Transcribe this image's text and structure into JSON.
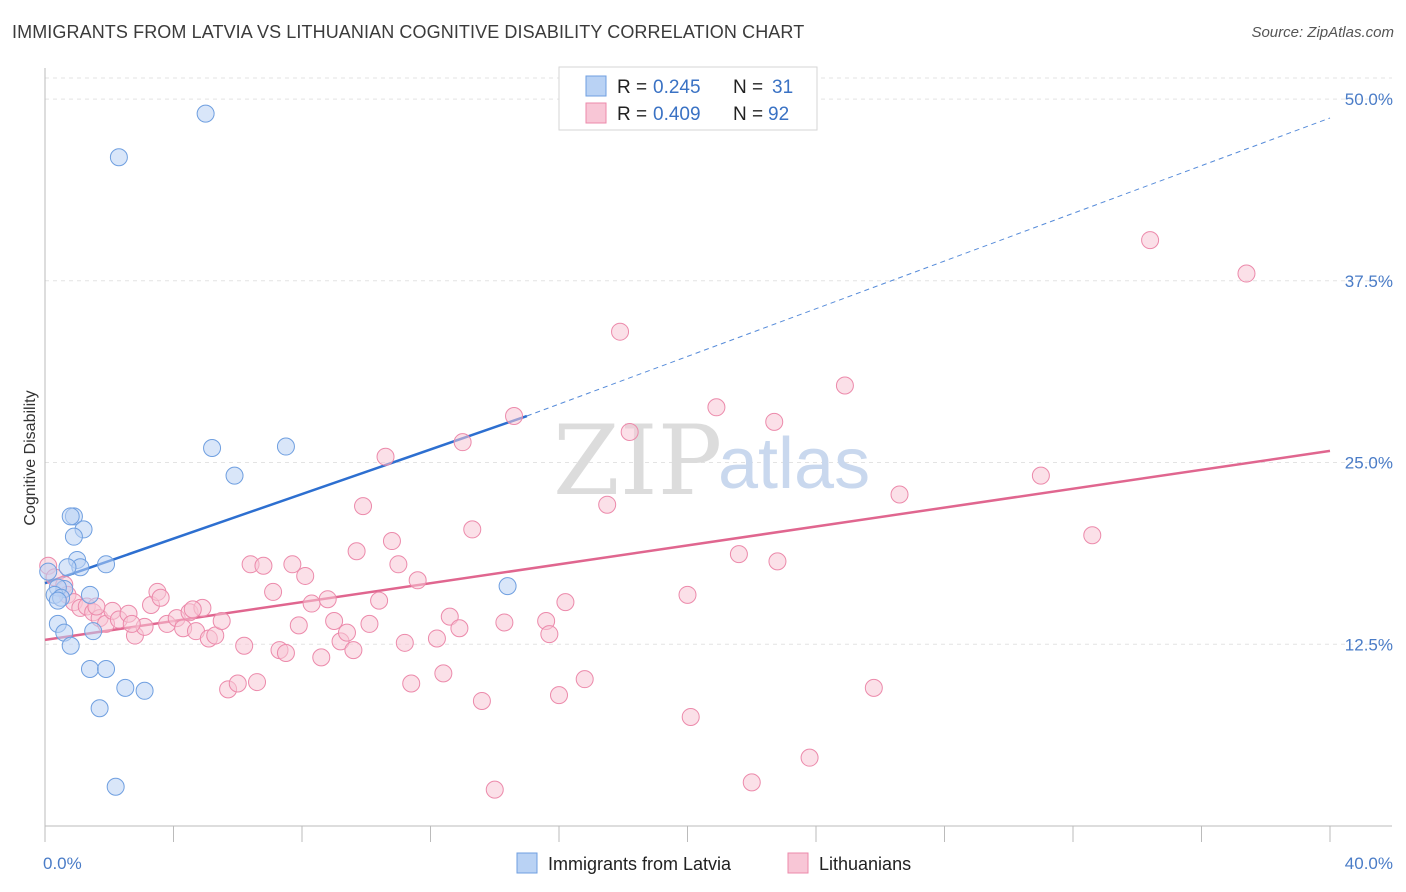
{
  "title": "IMMIGRANTS FROM LATVIA VS LITHUANIAN COGNITIVE DISABILITY CORRELATION CHART",
  "source": "Source: ZipAtlas.com",
  "watermark": {
    "zip": "ZIP",
    "atlas": "atlas"
  },
  "legend": {
    "r_label": "R =",
    "n_label": "N =",
    "rows": [
      {
        "r": "0.245",
        "n": "31"
      },
      {
        "r": "0.409",
        "n": "92"
      }
    ]
  },
  "chart_data": {
    "type": "scatter",
    "ylabel": "Cognitive Disability",
    "xlim": [
      0,
      40
    ],
    "ylim": [
      0,
      52
    ],
    "x_tick_labels": [
      "0.0%",
      "40.0%"
    ],
    "y_ticks": [
      12.5,
      25.0,
      37.5,
      50.0
    ],
    "y_tick_labels": [
      "12.5%",
      "25.0%",
      "37.5%",
      "50.0%"
    ],
    "grid": true,
    "legend_position": "top-center",
    "series": [
      {
        "name": "Immigrants from Latvia",
        "color": "#6f9fe0",
        "fill": "#b9d2f4",
        "trend": {
          "x": [
            0,
            15
          ],
          "y": [
            16.7,
            28.2
          ],
          "extend_to": [
            40,
            48.7
          ],
          "color": "#2d6fd0"
        },
        "points": [
          [
            5.0,
            49.0
          ],
          [
            2.3,
            46.0
          ],
          [
            5.2,
            26.0
          ],
          [
            7.5,
            26.1
          ],
          [
            5.9,
            24.1
          ],
          [
            0.9,
            21.3
          ],
          [
            0.8,
            21.3
          ],
          [
            1.2,
            20.4
          ],
          [
            0.9,
            19.9
          ],
          [
            1.9,
            18.0
          ],
          [
            1.0,
            18.3
          ],
          [
            1.1,
            17.8
          ],
          [
            0.7,
            17.8
          ],
          [
            0.1,
            17.5
          ],
          [
            0.6,
            16.3
          ],
          [
            0.4,
            16.4
          ],
          [
            0.3,
            15.9
          ],
          [
            0.5,
            15.7
          ],
          [
            0.4,
            15.5
          ],
          [
            1.4,
            15.9
          ],
          [
            14.4,
            16.5
          ],
          [
            0.4,
            13.9
          ],
          [
            0.6,
            13.3
          ],
          [
            1.5,
            13.4
          ],
          [
            0.8,
            12.4
          ],
          [
            1.4,
            10.8
          ],
          [
            1.9,
            10.8
          ],
          [
            2.5,
            9.5
          ],
          [
            3.1,
            9.3
          ],
          [
            1.7,
            8.1
          ],
          [
            2.2,
            2.7
          ]
        ]
      },
      {
        "name": "Lithuanians",
        "color": "#ec8aab",
        "fill": "#f8c6d6",
        "trend": {
          "x": [
            0,
            40
          ],
          "y": [
            12.8,
            25.8
          ],
          "color": "#e0668f"
        },
        "points": [
          [
            0.1,
            17.9
          ],
          [
            0.3,
            17.1
          ],
          [
            0.6,
            16.6
          ],
          [
            0.7,
            15.9
          ],
          [
            0.9,
            15.4
          ],
          [
            1.1,
            15.0
          ],
          [
            1.3,
            15.1
          ],
          [
            1.5,
            14.7
          ],
          [
            1.7,
            14.3
          ],
          [
            1.9,
            13.9
          ],
          [
            2.1,
            14.8
          ],
          [
            2.3,
            14.2
          ],
          [
            2.6,
            14.6
          ],
          [
            2.8,
            13.1
          ],
          [
            3.1,
            13.7
          ],
          [
            3.3,
            15.2
          ],
          [
            3.5,
            16.1
          ],
          [
            3.6,
            15.7
          ],
          [
            3.8,
            13.9
          ],
          [
            4.1,
            14.3
          ],
          [
            4.3,
            13.6
          ],
          [
            4.5,
            14.7
          ],
          [
            4.7,
            13.4
          ],
          [
            4.9,
            15.0
          ],
          [
            5.1,
            12.9
          ],
          [
            5.3,
            13.1
          ],
          [
            5.5,
            14.1
          ],
          [
            5.7,
            9.4
          ],
          [
            6.0,
            9.8
          ],
          [
            6.2,
            12.4
          ],
          [
            6.4,
            18.0
          ],
          [
            6.6,
            9.9
          ],
          [
            6.8,
            17.9
          ],
          [
            7.1,
            16.1
          ],
          [
            7.3,
            12.1
          ],
          [
            7.5,
            11.9
          ],
          [
            7.7,
            18.0
          ],
          [
            7.9,
            13.8
          ],
          [
            8.1,
            17.2
          ],
          [
            8.3,
            15.3
          ],
          [
            8.6,
            11.6
          ],
          [
            8.8,
            15.6
          ],
          [
            9.0,
            14.1
          ],
          [
            9.2,
            12.7
          ],
          [
            9.4,
            13.3
          ],
          [
            9.6,
            12.1
          ],
          [
            9.7,
            18.9
          ],
          [
            9.9,
            22.0
          ],
          [
            10.1,
            13.9
          ],
          [
            10.4,
            15.5
          ],
          [
            10.6,
            25.4
          ],
          [
            10.8,
            19.6
          ],
          [
            11.0,
            18.0
          ],
          [
            11.2,
            12.6
          ],
          [
            11.4,
            9.8
          ],
          [
            11.6,
            16.9
          ],
          [
            12.2,
            12.9
          ],
          [
            12.4,
            10.5
          ],
          [
            12.6,
            14.4
          ],
          [
            12.9,
            13.6
          ],
          [
            13.0,
            26.4
          ],
          [
            13.3,
            20.4
          ],
          [
            13.6,
            8.6
          ],
          [
            14.0,
            2.5
          ],
          [
            14.3,
            14.0
          ],
          [
            14.6,
            28.2
          ],
          [
            15.6,
            14.1
          ],
          [
            15.7,
            13.2
          ],
          [
            16.0,
            9.0
          ],
          [
            16.2,
            15.4
          ],
          [
            16.8,
            10.1
          ],
          [
            17.5,
            22.1
          ],
          [
            17.9,
            34.0
          ],
          [
            18.2,
            27.1
          ],
          [
            20.0,
            15.9
          ],
          [
            20.1,
            7.5
          ],
          [
            20.9,
            28.8
          ],
          [
            21.6,
            18.7
          ],
          [
            22.0,
            3.0
          ],
          [
            22.7,
            27.8
          ],
          [
            22.8,
            18.2
          ],
          [
            23.8,
            4.7
          ],
          [
            24.9,
            30.3
          ],
          [
            25.8,
            9.5
          ],
          [
            26.6,
            22.8
          ],
          [
            31.0,
            24.1
          ],
          [
            32.6,
            20.0
          ],
          [
            34.4,
            40.3
          ],
          [
            37.4,
            38.0
          ],
          [
            1.6,
            15.1
          ],
          [
            2.7,
            13.9
          ],
          [
            4.6,
            14.9
          ]
        ]
      }
    ]
  },
  "bottom_legend": [
    "Immigrants from Latvia",
    "Lithuanians"
  ]
}
